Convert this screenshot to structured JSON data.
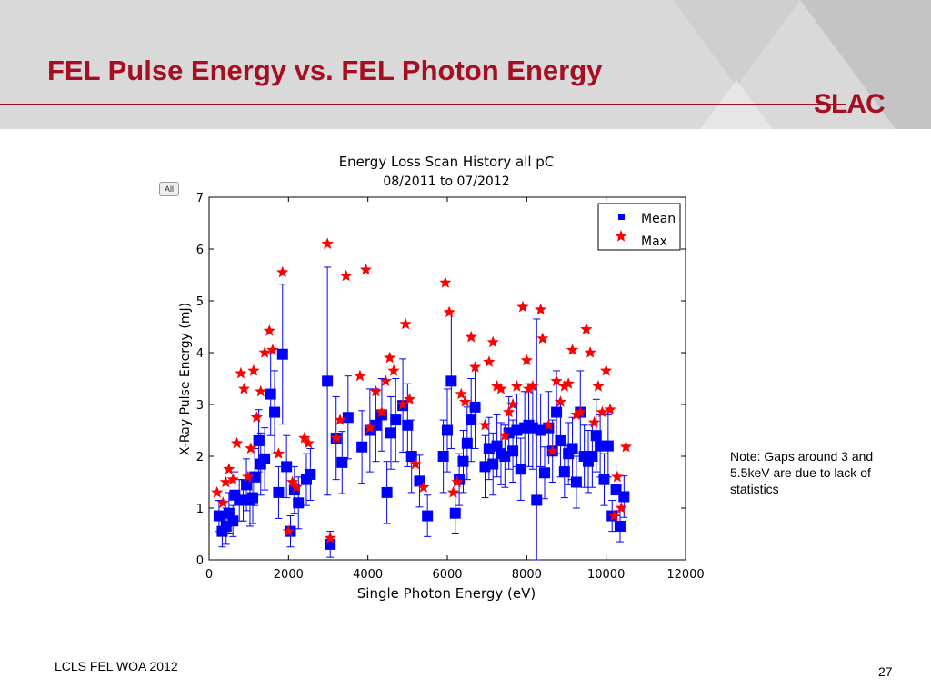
{
  "slide": {
    "title": "FEL Pulse Energy vs. FEL Photon Energy",
    "logo": "SLAC",
    "note": "Note: Gaps around 3 and 5.5keV are due to lack of statistics",
    "footer": "LCLS FEL WOA 2012",
    "page_number": "27",
    "all_button": "All"
  },
  "colors": {
    "title": "#a50f22",
    "mean": "#0000ff",
    "max": "#ff0000"
  },
  "chart_data": {
    "type": "scatter",
    "title": "Energy Loss Scan History all pC",
    "subtitle": "08/2011 to 07/2012",
    "xlabel": "Single Photon Energy (eV)",
    "ylabel": "X-Ray Pulse Energy (mJ)",
    "xlim": [
      0,
      12000
    ],
    "ylim": [
      0,
      7
    ],
    "xticks": [
      0,
      2000,
      4000,
      6000,
      8000,
      10000,
      12000
    ],
    "yticks": [
      0,
      1,
      2,
      3,
      4,
      5,
      6,
      7
    ],
    "grid": false,
    "legend": "top-right",
    "series": [
      {
        "name": "Mean",
        "marker": "square",
        "error_bars": true,
        "points": [
          [
            250,
            0.85,
            0.3
          ],
          [
            330,
            0.55,
            0.3
          ],
          [
            430,
            0.65,
            0.35
          ],
          [
            500,
            0.9,
            0.4
          ],
          [
            600,
            0.75,
            0.3
          ],
          [
            650,
            1.25,
            0.45
          ],
          [
            760,
            1.15,
            0.4
          ],
          [
            860,
            1.15,
            0.4
          ],
          [
            940,
            1.45,
            0.5
          ],
          [
            1030,
            1.15,
            0.5
          ],
          [
            1100,
            1.2,
            0.5
          ],
          [
            1150,
            1.6,
            0.55
          ],
          [
            1250,
            2.3,
            0.6
          ],
          [
            1300,
            1.85,
            0.6
          ],
          [
            1400,
            1.95,
            0.6
          ],
          [
            1550,
            3.2,
            0.8
          ],
          [
            1650,
            2.85,
            0.8
          ],
          [
            1750,
            1.3,
            0.5
          ],
          [
            1850,
            3.97,
            1.35
          ],
          [
            1950,
            1.8,
            0.6
          ],
          [
            2050,
            0.55,
            0.3
          ],
          [
            2150,
            1.35,
            0.45
          ],
          [
            2250,
            1.1,
            0.5
          ],
          [
            2450,
            1.55,
            0.5
          ],
          [
            2550,
            1.65,
            0.5
          ],
          [
            2980,
            3.45,
            2.2
          ],
          [
            3050,
            0.3,
            0.25
          ],
          [
            3200,
            2.35,
            0.8
          ],
          [
            3350,
            1.88,
            0.6
          ],
          [
            3500,
            2.75,
            0.8
          ],
          [
            3850,
            2.18,
            0.7
          ],
          [
            4050,
            2.5,
            0.8
          ],
          [
            4200,
            2.6,
            0.7
          ],
          [
            4350,
            2.8,
            0.7
          ],
          [
            4480,
            1.3,
            0.6
          ],
          [
            4580,
            2.45,
            0.7
          ],
          [
            4700,
            2.7,
            0.8
          ],
          [
            4880,
            2.98,
            0.9
          ],
          [
            5000,
            2.6,
            0.8
          ],
          [
            5100,
            2.0,
            0.7
          ],
          [
            5300,
            1.52,
            0.5
          ],
          [
            5500,
            0.85,
            0.4
          ],
          [
            5900,
            2.0,
            0.7
          ],
          [
            6000,
            2.5,
            0.8
          ],
          [
            6100,
            3.45,
            1.3
          ],
          [
            6200,
            0.9,
            0.4
          ],
          [
            6300,
            1.55,
            0.5
          ],
          [
            6400,
            1.9,
            0.6
          ],
          [
            6500,
            2.25,
            0.7
          ],
          [
            6600,
            2.7,
            0.8
          ],
          [
            6700,
            2.95,
            0.8
          ],
          [
            6950,
            1.8,
            0.6
          ],
          [
            7050,
            2.15,
            0.6
          ],
          [
            7150,
            1.85,
            0.6
          ],
          [
            7250,
            2.2,
            0.6
          ],
          [
            7350,
            2.05,
            0.6
          ],
          [
            7450,
            2.0,
            0.6
          ],
          [
            7550,
            2.45,
            0.7
          ],
          [
            7650,
            2.1,
            0.6
          ],
          [
            7750,
            2.5,
            0.7
          ],
          [
            7850,
            1.75,
            0.6
          ],
          [
            7950,
            2.55,
            0.7
          ],
          [
            8050,
            2.6,
            0.8
          ],
          [
            8150,
            2.55,
            0.8
          ],
          [
            8250,
            1.15,
            3.5
          ],
          [
            8350,
            2.5,
            0.7
          ],
          [
            8450,
            1.68,
            0.5
          ],
          [
            8550,
            2.55,
            0.7
          ],
          [
            8650,
            2.1,
            0.6
          ],
          [
            8750,
            2.85,
            0.8
          ],
          [
            8850,
            2.3,
            0.7
          ],
          [
            8950,
            1.7,
            0.5
          ],
          [
            9050,
            2.05,
            0.6
          ],
          [
            9150,
            2.15,
            0.6
          ],
          [
            9250,
            1.5,
            0.5
          ],
          [
            9350,
            2.85,
            0.8
          ],
          [
            9450,
            2.0,
            0.6
          ],
          [
            9550,
            1.9,
            0.6
          ],
          [
            9650,
            2.0,
            0.6
          ],
          [
            9750,
            2.4,
            0.7
          ],
          [
            9850,
            2.2,
            0.6
          ],
          [
            9950,
            1.55,
            0.5
          ],
          [
            10050,
            2.2,
            0.6
          ],
          [
            10150,
            0.85,
            0.3
          ],
          [
            10250,
            1.35,
            0.5
          ],
          [
            10350,
            0.65,
            0.3
          ],
          [
            10450,
            1.22,
            0.4
          ]
        ]
      },
      {
        "name": "Max",
        "marker": "star",
        "points": [
          [
            200,
            1.3
          ],
          [
            350,
            1.1
          ],
          [
            420,
            1.5
          ],
          [
            500,
            1.75
          ],
          [
            600,
            1.55
          ],
          [
            700,
            2.25
          ],
          [
            800,
            3.6
          ],
          [
            880,
            3.3
          ],
          [
            980,
            1.6
          ],
          [
            1050,
            2.15
          ],
          [
            1120,
            3.65
          ],
          [
            1200,
            2.75
          ],
          [
            1300,
            3.25
          ],
          [
            1400,
            4.0
          ],
          [
            1520,
            4.42
          ],
          [
            1600,
            4.05
          ],
          [
            1750,
            2.05
          ],
          [
            1850,
            5.55
          ],
          [
            2000,
            0.55
          ],
          [
            2100,
            1.5
          ],
          [
            2200,
            1.4
          ],
          [
            2400,
            2.35
          ],
          [
            2500,
            2.25
          ],
          [
            2980,
            6.1
          ],
          [
            3050,
            0.42
          ],
          [
            3200,
            2.35
          ],
          [
            3300,
            2.7
          ],
          [
            3450,
            5.48
          ],
          [
            3800,
            3.55
          ],
          [
            3950,
            5.6
          ],
          [
            4050,
            2.55
          ],
          [
            4200,
            3.25
          ],
          [
            4350,
            2.85
          ],
          [
            4450,
            3.45
          ],
          [
            4550,
            3.9
          ],
          [
            4650,
            3.65
          ],
          [
            4880,
            3.0
          ],
          [
            4950,
            4.55
          ],
          [
            5050,
            3.1
          ],
          [
            5200,
            1.85
          ],
          [
            5400,
            1.4
          ],
          [
            5950,
            5.35
          ],
          [
            6050,
            4.78
          ],
          [
            6150,
            1.3
          ],
          [
            6250,
            1.5
          ],
          [
            6350,
            3.2
          ],
          [
            6450,
            3.05
          ],
          [
            6600,
            4.3
          ],
          [
            6700,
            3.72
          ],
          [
            6950,
            2.6
          ],
          [
            7050,
            3.82
          ],
          [
            7150,
            4.2
          ],
          [
            7250,
            3.35
          ],
          [
            7350,
            3.3
          ],
          [
            7450,
            2.4
          ],
          [
            7550,
            2.85
          ],
          [
            7650,
            3.0
          ],
          [
            7750,
            3.35
          ],
          [
            7900,
            4.88
          ],
          [
            8000,
            3.85
          ],
          [
            8050,
            3.3
          ],
          [
            8150,
            3.35
          ],
          [
            8350,
            4.83
          ],
          [
            8400,
            4.27
          ],
          [
            8550,
            2.6
          ],
          [
            8650,
            2.1
          ],
          [
            8750,
            3.45
          ],
          [
            8850,
            3.05
          ],
          [
            8950,
            3.35
          ],
          [
            9050,
            3.4
          ],
          [
            9150,
            4.05
          ],
          [
            9250,
            2.8
          ],
          [
            9350,
            2.85
          ],
          [
            9500,
            4.45
          ],
          [
            9600,
            4.0
          ],
          [
            9700,
            2.65
          ],
          [
            9800,
            3.35
          ],
          [
            9900,
            2.85
          ],
          [
            10000,
            3.65
          ],
          [
            10100,
            2.9
          ],
          [
            10200,
            0.85
          ],
          [
            10280,
            1.6
          ],
          [
            10380,
            1.0
          ],
          [
            10500,
            2.18
          ]
        ]
      }
    ]
  }
}
